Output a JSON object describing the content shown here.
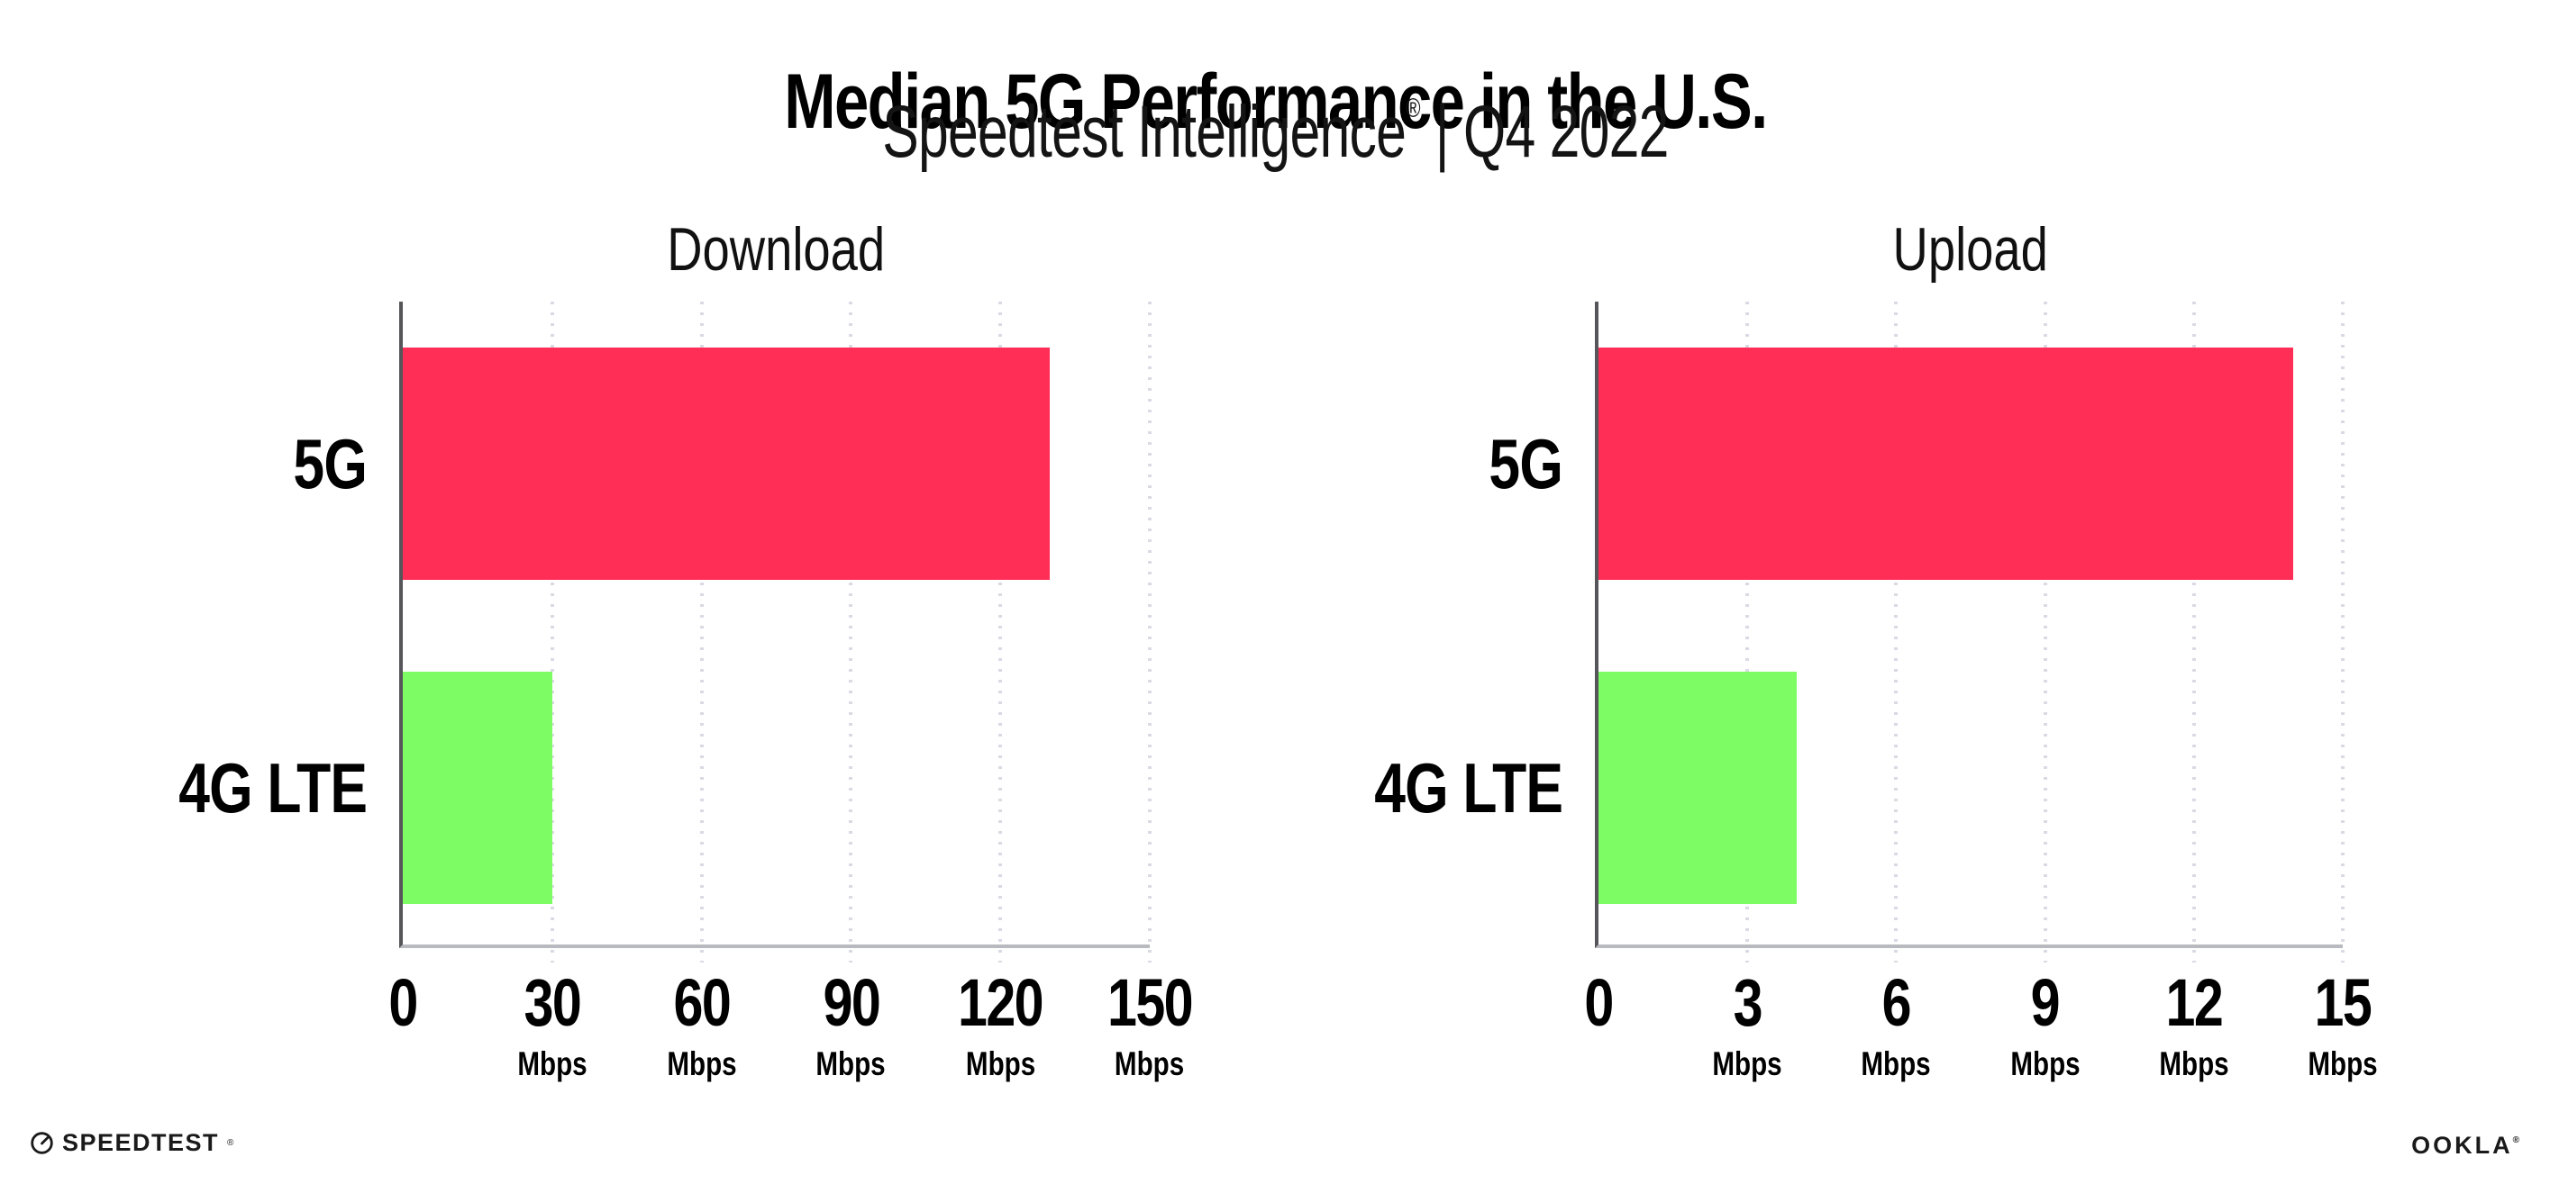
{
  "header": {
    "title": "Median 5G Performance in the U.S.",
    "subtitle_brand": "Speedtest Intelligence",
    "subtitle_reg": "®",
    "subtitle_divider": "|",
    "subtitle_period": "Q4 2022"
  },
  "chart_data": [
    {
      "type": "bar",
      "orientation": "horizontal",
      "title": "Download",
      "categories": [
        "5G",
        "4G LTE"
      ],
      "values": [
        130,
        30
      ],
      "unit": "Mbps",
      "xlim": [
        0,
        150
      ],
      "xticks": [
        0,
        30,
        60,
        90,
        120,
        150
      ],
      "bar_colors": [
        "#ff2e56",
        "#7dfc64"
      ],
      "grid": "vertical-dotted",
      "legend": "none"
    },
    {
      "type": "bar",
      "orientation": "horizontal",
      "title": "Upload",
      "categories": [
        "5G",
        "4G LTE"
      ],
      "values": [
        14,
        4
      ],
      "unit": "Mbps",
      "xlim": [
        0,
        15
      ],
      "xticks": [
        0,
        3,
        6,
        9,
        12,
        15
      ],
      "bar_colors": [
        "#ff2e56",
        "#7dfc64"
      ],
      "grid": "vertical-dotted",
      "legend": "none"
    }
  ],
  "footer": {
    "speedtest_label": "SPEEDTEST",
    "speedtest_reg": "®",
    "ookla_label": "OOKLA",
    "ookla_reg": "®"
  },
  "colors": {
    "bar_5g": "#ff2e56",
    "bar_4g_lte": "#7dfc64",
    "gridline": "#d9dae4",
    "axis_left_spine": "#55555a",
    "axis_bottom_spine": "#b9b9c0",
    "text": "#000000"
  }
}
